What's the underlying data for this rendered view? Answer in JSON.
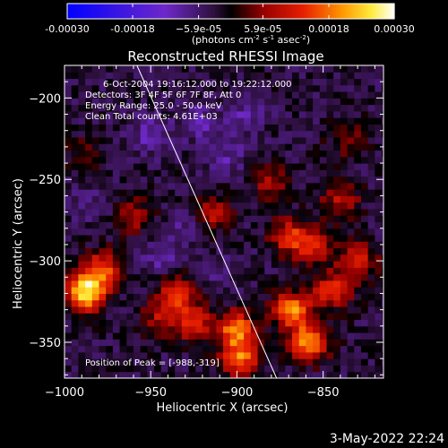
{
  "chart_data": {
    "type": "heatmap",
    "title": "Reconstructed RHESSI Image",
    "xlabel": "Heliocentric X (arcsec)",
    "ylabel": "Heliocentric Y (arcsec)",
    "xlim": [
      -1000,
      -815
    ],
    "ylim": [
      -372,
      -180
    ],
    "x_ticks": [
      -1000,
      -950,
      -900,
      -850
    ],
    "y_ticks": [
      -350,
      -300,
      -250,
      -200
    ],
    "x_tick_labels": [
      "−1000",
      "−950",
      "−900",
      "−850"
    ],
    "y_tick_labels": [
      "−350",
      "−300",
      "−250",
      "−200"
    ],
    "colorbar": {
      "ticks": [
        -0.0003,
        -0.00018,
        -5.9e-05,
        5.9e-05,
        0.00018,
        0.0003
      ],
      "tick_labels": [
        "-0.00030",
        "-0.00018",
        "−5.9e-05",
        "5.9e-05",
        "0.00018",
        "0.00030"
      ],
      "unit_label_parts": [
        "(photons cm",
        "-2",
        " s",
        "-1",
        " asec",
        "-2",
        ")"
      ]
    },
    "annotations": [
      "6-Oct-2004 19:16:12.000 to 19:22:12.000",
      "Detectors: 3F 4F 5F 6F 7F 8F, Att 0",
      "Energy Range: 25.0 - 50.0 keV",
      "Clean     Total counts: 4.61E+03",
      "Position of Peak = [-988,-319]"
    ],
    "limb_line": [
      [
        -958,
        -180
      ],
      [
        -877,
        -372
      ]
    ],
    "hot_spots": [
      {
        "x": -988,
        "y": -319,
        "v": 0.0003
      },
      {
        "x": -978,
        "y": -305,
        "v": 0.00018
      },
      {
        "x": -935,
        "y": -320,
        "v": 0.00016
      },
      {
        "x": -925,
        "y": -338,
        "v": 0.00015
      },
      {
        "x": -900,
        "y": -342,
        "v": 0.00022
      },
      {
        "x": -898,
        "y": -360,
        "v": 0.0002
      },
      {
        "x": -868,
        "y": -330,
        "v": 0.00022
      },
      {
        "x": -858,
        "y": -350,
        "v": 0.00024
      },
      {
        "x": -845,
        "y": -318,
        "v": 0.00016
      },
      {
        "x": -870,
        "y": -285,
        "v": 0.00015
      },
      {
        "x": -855,
        "y": -290,
        "v": 0.00014
      },
      {
        "x": -830,
        "y": -300,
        "v": 0.00014
      },
      {
        "x": -915,
        "y": -270,
        "v": 0.00012
      },
      {
        "x": -960,
        "y": -272,
        "v": 0.0001
      },
      {
        "x": -840,
        "y": -262,
        "v": 0.00012
      },
      {
        "x": -880,
        "y": -252,
        "v": 0.0001
      },
      {
        "x": -835,
        "y": -225,
        "v": 8e-05
      },
      {
        "x": -988,
        "y": -235,
        "v": 7e-05
      },
      {
        "x": -945,
        "y": -335,
        "v": 0.0001
      }
    ],
    "cold_spots": [
      {
        "x": -950,
        "y": -222,
        "v": -8e-05
      },
      {
        "x": -922,
        "y": -215,
        "v": -7e-05
      },
      {
        "x": -895,
        "y": -210,
        "v": -6e-05
      },
      {
        "x": -905,
        "y": -236,
        "v": -6e-05
      },
      {
        "x": -945,
        "y": -298,
        "v": -6e-05
      },
      {
        "x": -930,
        "y": -280,
        "v": -5e-05
      },
      {
        "x": -985,
        "y": -265,
        "v": -4e-05
      },
      {
        "x": -912,
        "y": -306,
        "v": -4e-05
      }
    ]
  },
  "footer": {
    "date": "3-May-2022 22:24"
  }
}
